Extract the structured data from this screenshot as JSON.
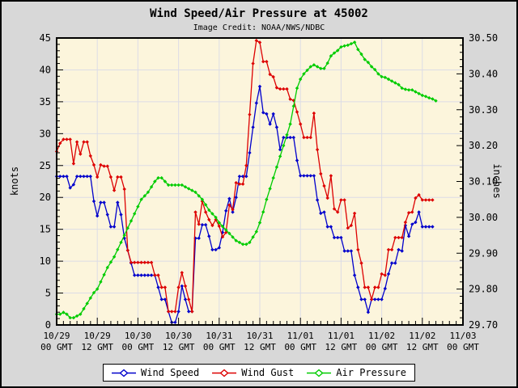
{
  "chart_data": {
    "type": "line",
    "title": "Wind Speed/Air Pressure at 45002",
    "subtitle": "Image Credit: NOAA/NWS/NDBC",
    "grid": true,
    "legend_position": "bottom-center",
    "colors": {
      "outer_bg": "#d8d8d8",
      "plot_bg": "#fcf5dc",
      "grid": "#dcdce6",
      "frame": "#000000"
    },
    "x_axis": {
      "start_hour": 0,
      "end_hour": 120,
      "major_tick_hours": 12,
      "minor_tick_hours": 2,
      "tick_labels": [
        {
          "date": "10/29",
          "time": "00 GMT"
        },
        {
          "date": "10/29",
          "time": "12 GMT"
        },
        {
          "date": "10/30",
          "time": "00 GMT"
        },
        {
          "date": "10/30",
          "time": "12 GMT"
        },
        {
          "date": "10/31",
          "time": "00 GMT"
        },
        {
          "date": "10/31",
          "time": "12 GMT"
        },
        {
          "date": "11/01",
          "time": "00 GMT"
        },
        {
          "date": "11/01",
          "time": "12 GMT"
        },
        {
          "date": "11/02",
          "time": "00 GMT"
        },
        {
          "date": "11/02",
          "time": "12 GMT"
        },
        {
          "date": "11/03",
          "time": "00 GMT"
        }
      ]
    },
    "y_left": {
      "label": "knots",
      "min": 0,
      "max": 45,
      "major": 5,
      "minor": 1,
      "tick_labels": [
        "0",
        "5",
        "10",
        "15",
        "20",
        "25",
        "30",
        "35",
        "40",
        "45"
      ]
    },
    "y_right": {
      "label": "inches",
      "min": 29.7,
      "max": 30.5,
      "major": 0.1,
      "minor": 0.02,
      "tick_labels": [
        "29.70",
        "29.80",
        "29.90",
        "30.00",
        "30.10",
        "30.20",
        "30.30",
        "30.40",
        "30.50"
      ]
    },
    "series": [
      {
        "name": "Wind Speed",
        "axis": "left",
        "color": "#0000cc",
        "start_hour": 0,
        "step_hours": 1,
        "values": [
          23.3,
          23.3,
          23.3,
          23.3,
          21.5,
          22.0,
          23.3,
          23.3,
          23.3,
          23.3,
          23.3,
          19.4,
          17.1,
          19.2,
          19.2,
          17.3,
          15.4,
          15.4,
          19.2,
          17.3,
          13.6,
          11.7,
          9.7,
          7.8,
          7.8,
          7.8,
          7.8,
          7.8,
          7.8,
          7.8,
          5.9,
          4.0,
          4.0,
          2.1,
          0.4,
          0.4,
          2.1,
          6.1,
          4.0,
          2.1,
          2.1,
          13.6,
          13.6,
          15.7,
          15.7,
          13.9,
          11.8,
          11.8,
          12.1,
          14.5,
          17.9,
          19.8,
          17.7,
          20.0,
          23.3,
          23.3,
          23.3,
          27.0,
          31.0,
          34.8,
          37.4,
          33.3,
          33.1,
          31.5,
          33.1,
          31.0,
          27.5,
          29.4,
          29.4,
          29.4,
          29.4,
          25.8,
          23.4,
          23.4,
          23.4,
          23.4,
          23.4,
          19.6,
          17.5,
          17.7,
          15.4,
          15.4,
          13.7,
          13.7,
          13.7,
          11.6,
          11.6,
          11.6,
          7.8,
          5.9,
          4.0,
          4.0,
          2.0,
          4.0,
          4.0,
          4.0,
          4.0,
          5.7,
          8.0,
          9.7,
          9.7,
          11.8,
          11.6,
          15.6,
          13.9,
          15.8,
          16.1,
          17.7,
          15.4,
          15.4,
          15.4,
          15.4
        ]
      },
      {
        "name": "Wind Gust",
        "axis": "left",
        "color": "#dd0000",
        "start_hour": 0,
        "step_hours": 1,
        "values": [
          27.2,
          28.5,
          29.1,
          29.1,
          29.1,
          25.3,
          28.7,
          26.8,
          28.7,
          28.7,
          26.5,
          25.1,
          23.2,
          25.1,
          24.9,
          24.9,
          23.2,
          21.1,
          23.2,
          23.2,
          21.3,
          11.7,
          9.8,
          9.8,
          9.8,
          9.8,
          9.8,
          9.8,
          9.8,
          7.8,
          7.8,
          5.9,
          5.9,
          2.1,
          2.1,
          2.1,
          5.9,
          8.2,
          6.1,
          4.0,
          2.1,
          17.7,
          15.8,
          19.4,
          17.7,
          16.5,
          15.6,
          16.5,
          15.5,
          13.8,
          14.5,
          18.8,
          18.1,
          22.3,
          22.1,
          22.1,
          25.0,
          33.0,
          41.0,
          44.6,
          44.3,
          41.3,
          41.3,
          39.3,
          38.9,
          37.2,
          37.0,
          37.0,
          37.0,
          35.4,
          35.2,
          33.4,
          31.5,
          29.4,
          29.4,
          29.4,
          33.2,
          27.5,
          23.7,
          21.8,
          19.9,
          23.4,
          18.2,
          17.7,
          19.6,
          19.6,
          15.2,
          15.6,
          17.5,
          11.8,
          9.7,
          5.9,
          5.9,
          4.0,
          5.9,
          5.9,
          8.0,
          7.8,
          11.8,
          11.8,
          13.7,
          13.7,
          13.7,
          16.1,
          17.6,
          17.7,
          19.9,
          20.4,
          19.6,
          19.6,
          19.6,
          19.6
        ]
      },
      {
        "name": "Air Pressure",
        "axis": "right",
        "color": "#00cc00",
        "start_hour": 0,
        "step_hours": 1,
        "values": [
          29.73,
          29.73,
          29.735,
          29.73,
          29.72,
          29.72,
          29.725,
          29.73,
          29.745,
          29.76,
          29.775,
          29.79,
          29.8,
          29.82,
          29.84,
          29.86,
          29.875,
          29.89,
          29.91,
          29.93,
          29.95,
          29.97,
          29.99,
          30.01,
          30.03,
          30.05,
          30.06,
          30.07,
          30.085,
          30.1,
          30.11,
          30.11,
          30.1,
          30.09,
          30.09,
          30.09,
          30.09,
          30.09,
          30.085,
          30.08,
          30.075,
          30.07,
          30.06,
          30.05,
          30.035,
          30.02,
          30.01,
          30.0,
          29.985,
          29.975,
          29.965,
          29.955,
          29.945,
          29.935,
          29.93,
          29.925,
          29.925,
          29.93,
          29.945,
          29.96,
          29.985,
          30.015,
          30.05,
          30.08,
          30.11,
          30.14,
          30.17,
          30.2,
          30.23,
          30.26,
          30.31,
          30.36,
          30.385,
          30.4,
          30.41,
          30.42,
          30.425,
          30.42,
          30.415,
          30.415,
          30.43,
          30.45,
          30.458,
          30.465,
          30.475,
          30.478,
          30.48,
          30.484,
          30.488,
          30.468,
          30.455,
          30.44,
          30.432,
          30.42,
          30.412,
          30.4,
          30.392,
          30.39,
          30.385,
          30.38,
          30.375,
          30.37,
          30.36,
          30.357,
          30.355,
          30.355,
          30.35,
          30.345,
          30.34,
          30.337,
          30.333,
          30.33,
          30.325
        ]
      }
    ]
  }
}
